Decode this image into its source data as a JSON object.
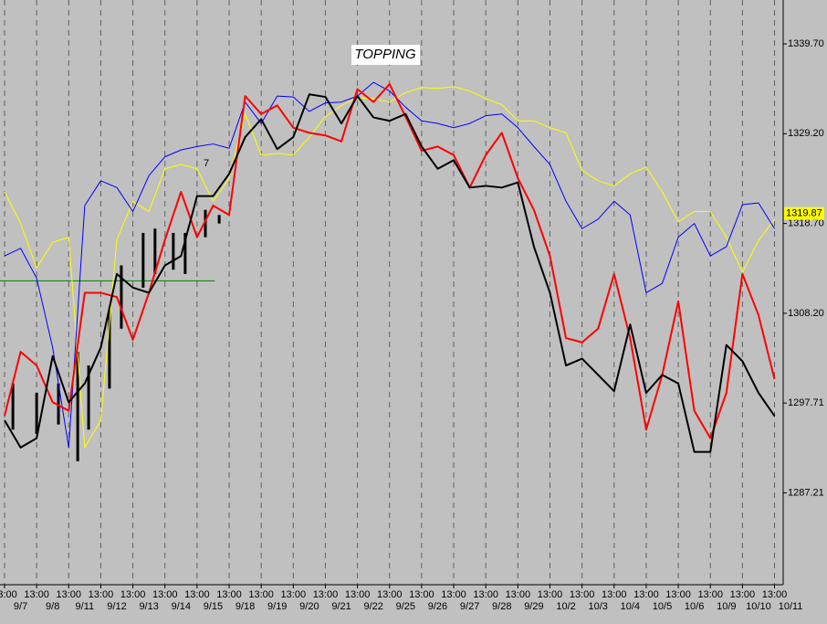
{
  "chart_data": {
    "type": "line",
    "annotations": [
      {
        "text": "TOPPING"
      },
      {
        "text": "7",
        "color": "#ff0000"
      }
    ],
    "last_price": {
      "value": 1319.87,
      "label": "1319.87",
      "color": "#ffff00"
    },
    "x": [
      0,
      0.5,
      1,
      1.5,
      2,
      2.5,
      3,
      3.5,
      4,
      4.5,
      5,
      5.5,
      6,
      6.5,
      7,
      7.5,
      8,
      8.5,
      9,
      9.5,
      10,
      10.5,
      11,
      11.5,
      12,
      12.5,
      13,
      13.5,
      14,
      14.5,
      15,
      15.5,
      16,
      16.5,
      17,
      17.5,
      18,
      18.5,
      19,
      19.5,
      20,
      20.5,
      21,
      21.5,
      22,
      22.5,
      23,
      23.5,
      24
    ],
    "series": [
      {
        "color": "#ffff00",
        "width": 1,
        "values": [
          1322.4,
          1318.7,
          1313.5,
          1316.5,
          1317.1,
          1292.5,
          1295.7,
          1316.8,
          1321.3,
          1320.1,
          1325.1,
          1325.6,
          1325.1,
          1321.3,
          1324.0,
          1331.5,
          1326.7,
          1326.9,
          1326.7,
          1328.8,
          1331.2,
          1332.5,
          1333.4,
          1333.3,
          1332.9,
          1334.0,
          1334.6,
          1334.5,
          1334.7,
          1334.2,
          1333.3,
          1332.6,
          1330.7,
          1330.7,
          1329.9,
          1329.3,
          1324.9,
          1323.7,
          1323.1,
          1324.5,
          1325.3,
          1322.4,
          1318.9,
          1320.1,
          1320.1,
          1317.1,
          1313.0,
          1316.7,
          1319.2
        ]
      },
      {
        "color": "#0000ff",
        "width": 1,
        "values": [
          1314.9,
          1315.8,
          1312.3,
          1304.2,
          1292.5,
          1320.8,
          1323.7,
          1322.9,
          1320.1,
          1324.3,
          1326.5,
          1327.3,
          1327.7,
          1328.0,
          1327.5,
          1332.9,
          1330.4,
          1333.6,
          1333.5,
          1331.8,
          1332.8,
          1332.9,
          1333.6,
          1335.2,
          1334.2,
          1332.3,
          1330.7,
          1330.4,
          1329.9,
          1330.4,
          1331.3,
          1331.5,
          1329.9,
          1327.7,
          1325.6,
          1321.3,
          1318.1,
          1319.2,
          1321.3,
          1319.7,
          1310.6,
          1311.7,
          1317.1,
          1318.7,
          1314.9,
          1316.0,
          1320.9,
          1321.1,
          1318.1
        ]
      },
      {
        "color": "#ff0000",
        "width": 2,
        "values": [
          1296.2,
          1303.7,
          1302.1,
          1297.8,
          1296.8,
          1310.6,
          1310.6,
          1310.1,
          1305.1,
          1310.6,
          1316.8,
          1322.4,
          1317.1,
          1320.8,
          1319.7,
          1333.6,
          1331.5,
          1332.5,
          1329.9,
          1329.3,
          1329.0,
          1328.3,
          1334.4,
          1332.9,
          1335.0,
          1331.2,
          1327.2,
          1327.7,
          1326.7,
          1322.9,
          1326.7,
          1329.3,
          1324.0,
          1320.3,
          1314.9,
          1305.3,
          1304.8,
          1306.4,
          1312.8,
          1305.3,
          1294.6,
          1301.0,
          1309.6,
          1296.8,
          1293.6,
          1298.9,
          1312.8,
          1308.0,
          1300.5
        ]
      },
      {
        "color": "#000000",
        "width": 2,
        "values": [
          1295.7,
          1292.5,
          1293.6,
          1303.2,
          1297.8,
          1300.0,
          1304.2,
          1312.8,
          1311.2,
          1310.6,
          1313.8,
          1314.9,
          1321.9,
          1321.9,
          1324.5,
          1328.8,
          1330.9,
          1327.4,
          1328.8,
          1333.8,
          1333.5,
          1330.4,
          1333.6,
          1331.1,
          1330.7,
          1331.5,
          1327.7,
          1325.1,
          1326.1,
          1322.9,
          1323.1,
          1322.9,
          1323.5,
          1316.0,
          1310.6,
          1302.1,
          1302.9,
          1301.0,
          1299.1,
          1306.9,
          1298.9,
          1301.0,
          1300.0,
          1292.0,
          1292.0,
          1304.5,
          1302.6,
          1298.9,
          1296.2
        ]
      }
    ],
    "price_bars": {
      "color": "#000000",
      "x": [
        0.26,
        1.0,
        1.68,
        2.28,
        2.62,
        3.27,
        3.64,
        4.32,
        4.69,
        5.26,
        5.63,
        6.26,
        6.69
      ],
      "high": [
        1300.0,
        1298.9,
        1300.0,
        1303.7,
        1302.1,
        1308.5,
        1313.8,
        1317.6,
        1318.1,
        1317.6,
        1317.6,
        1320.3,
        1319.7
      ],
      "low": [
        1294.6,
        1294.1,
        1295.2,
        1290.9,
        1294.6,
        1299.4,
        1306.4,
        1311.2,
        1312.8,
        1313.3,
        1312.8,
        1317.1,
        1318.7
      ]
    },
    "reference_line": {
      "value": 1312.0,
      "x_end": 6.55,
      "color": "#008000"
    },
    "xlim": [
      -0.142,
      24.27
    ],
    "xticks": [
      {
        "value": 0,
        "label": "13:00"
      },
      {
        "value": 1,
        "label": "13:00"
      },
      {
        "value": 2,
        "label": "13:00"
      },
      {
        "value": 3,
        "label": "13:00"
      },
      {
        "value": 4,
        "label": "13:00"
      },
      {
        "value": 5,
        "label": "13:00"
      },
      {
        "value": 6,
        "label": "13:00"
      },
      {
        "value": 7,
        "label": "13:00"
      },
      {
        "value": 8,
        "label": "13:00"
      },
      {
        "value": 9,
        "label": "13:00"
      },
      {
        "value": 10,
        "label": "13:00"
      },
      {
        "value": 11,
        "label": "13:00"
      },
      {
        "value": 12,
        "label": "13:00"
      },
      {
        "value": 13,
        "label": "13:00"
      },
      {
        "value": 14,
        "label": "13:00"
      },
      {
        "value": 15,
        "label": "13:00"
      },
      {
        "value": 16,
        "label": "13:00"
      },
      {
        "value": 17,
        "label": "13:00"
      },
      {
        "value": 18,
        "label": "13:00"
      },
      {
        "value": 19,
        "label": "13:00"
      },
      {
        "value": 20,
        "label": "13:00"
      },
      {
        "value": 21,
        "label": "13:00"
      },
      {
        "value": 22,
        "label": "13:00"
      },
      {
        "value": 23,
        "label": "13:00"
      },
      {
        "value": 24,
        "label": "13:00"
      }
    ],
    "date_ticks": [
      {
        "value": 0.5,
        "label": "9/7"
      },
      {
        "value": 1.5,
        "label": "9/8"
      },
      {
        "value": 2.5,
        "label": "9/11"
      },
      {
        "value": 3.5,
        "label": "9/12"
      },
      {
        "value": 4.5,
        "label": "9/13"
      },
      {
        "value": 5.5,
        "label": "9/14"
      },
      {
        "value": 6.5,
        "label": "9/15"
      },
      {
        "value": 7.5,
        "label": "9/18"
      },
      {
        "value": 8.5,
        "label": "9/19"
      },
      {
        "value": 9.5,
        "label": "9/20"
      },
      {
        "value": 10.5,
        "label": "9/21"
      },
      {
        "value": 11.5,
        "label": "9/22"
      },
      {
        "value": 12.5,
        "label": "9/25"
      },
      {
        "value": 13.5,
        "label": "9/26"
      },
      {
        "value": 14.5,
        "label": "9/27"
      },
      {
        "value": 15.5,
        "label": "9/28"
      },
      {
        "value": 16.5,
        "label": "9/29"
      },
      {
        "value": 17.5,
        "label": "10/2"
      },
      {
        "value": 18.5,
        "label": "10/3"
      },
      {
        "value": 19.5,
        "label": "10/4"
      },
      {
        "value": 20.5,
        "label": "10/5"
      },
      {
        "value": 21.5,
        "label": "10/6"
      },
      {
        "value": 22.5,
        "label": "10/9"
      },
      {
        "value": 23.5,
        "label": "10/10"
      },
      {
        "value": 24.5,
        "label": "10/11"
      }
    ],
    "ylim": [
      1276.47,
      1344.83
    ],
    "yticks": [
      {
        "value": 1339.7,
        "label": "1339.70"
      },
      {
        "value": 1329.2,
        "label": "1329.20"
      },
      {
        "value": 1318.7,
        "label": "1318.70"
      },
      {
        "value": 1308.2,
        "label": "1308.20"
      },
      1297.71,
      1287.21
    ],
    "grid": true
  }
}
